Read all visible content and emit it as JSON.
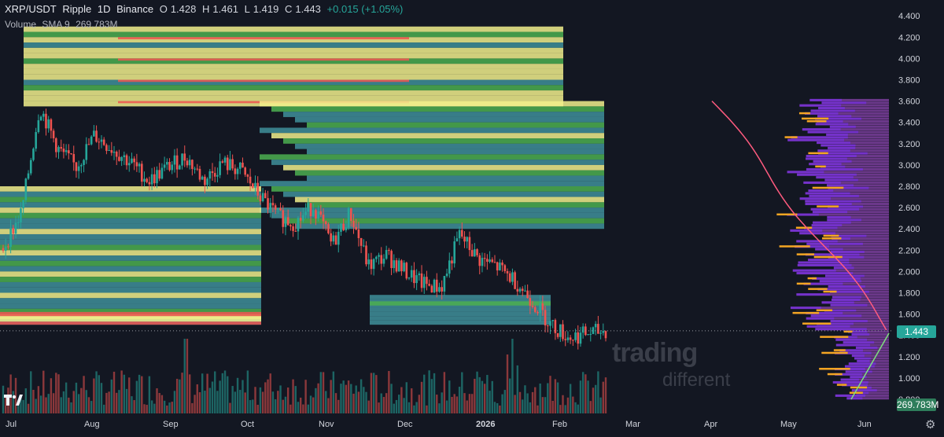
{
  "header": {
    "symbol": "XRP/USDT",
    "name": "Ripple",
    "interval": "1D",
    "exchange": "Binance",
    "open_label": "O",
    "open_value": "1.428",
    "high_label": "H",
    "high_value": "1.461",
    "low_label": "L",
    "low_value": "1.419",
    "close_label": "C",
    "close_value": "1.443",
    "change": "+0.015 (+1.05%)"
  },
  "volume_legend": {
    "label": "Volume",
    "indicator": "SMA 9",
    "value": "269.783M"
  },
  "price_tags": {
    "last_price": "1.443",
    "volume_value": "269.783M"
  },
  "watermark": {
    "line1": "trading",
    "line2": "different"
  },
  "colors": {
    "background": "#131722",
    "up": "#26a69a",
    "down": "#ef5350",
    "heat_yellow": "#f2f08c",
    "heat_green": "#4caf50",
    "heat_teal": "#3f8f9a",
    "profile_purple": "#b553e0",
    "profile_orange": "#f5a623",
    "last_price_tag": "#26a69a",
    "volume_tag": "#2e7d5b"
  },
  "icons": {
    "logo": "tradingview-logo-icon",
    "settings": "gear-icon"
  },
  "chart_data": {
    "type": "candlestick",
    "title": "XRP/USDT · Ripple · 1D · Binance",
    "x_ticks": [
      "Jul",
      "Aug",
      "Sep",
      "Oct",
      "Nov",
      "Dec",
      "2026",
      "Feb",
      "Mar",
      "Apr",
      "May",
      "Jun"
    ],
    "y_ticks": [
      "0.800",
      "1.000",
      "1.200",
      "1.400",
      "1.600",
      "1.800",
      "2.000",
      "2.200",
      "2.400",
      "2.600",
      "2.800",
      "3.000",
      "3.200",
      "3.400",
      "3.600",
      "3.800",
      "4.000",
      "4.200",
      "4.400"
    ],
    "ylim": [
      0.8,
      4.5
    ],
    "price_path": [
      {
        "date": "Jul 1",
        "close": 2.22
      },
      {
        "date": "Jul 10",
        "close": 2.55
      },
      {
        "date": "Jul 18",
        "close": 3.55
      },
      {
        "date": "Jul 25",
        "close": 3.15
      },
      {
        "date": "Aug 1",
        "close": 2.98
      },
      {
        "date": "Aug 8",
        "close": 3.28
      },
      {
        "date": "Aug 15",
        "close": 3.15
      },
      {
        "date": "Aug 22",
        "close": 3.02
      },
      {
        "date": "Sep 1",
        "close": 2.85
      },
      {
        "date": "Sep 10",
        "close": 2.98
      },
      {
        "date": "Sep 18",
        "close": 3.08
      },
      {
        "date": "Sep 25",
        "close": 2.85
      },
      {
        "date": "Oct 1",
        "close": 3.02
      },
      {
        "date": "Oct 5",
        "close": 2.95
      },
      {
        "date": "Oct 10",
        "close": 2.72
      },
      {
        "date": "Oct 11",
        "close": 2.52
      },
      {
        "date": "Oct 20",
        "close": 2.45
      },
      {
        "date": "Oct 28",
        "close": 2.62
      },
      {
        "date": "Nov 4",
        "close": 2.25
      },
      {
        "date": "Nov 10",
        "close": 2.55
      },
      {
        "date": "Nov 20",
        "close": 2.05
      },
      {
        "date": "Dec 1",
        "close": 2.15
      },
      {
        "date": "Dec 10",
        "close": 2.0
      },
      {
        "date": "Dec 20",
        "close": 1.88
      },
      {
        "date": "Dec 31",
        "close": 1.85
      },
      {
        "date": "Jan 5",
        "close": 2.35
      },
      {
        "date": "Jan 10",
        "close": 2.12
      },
      {
        "date": "Jan 18",
        "close": 2.05
      },
      {
        "date": "Jan 25",
        "close": 1.92
      },
      {
        "date": "Feb 1",
        "close": 1.72
      },
      {
        "date": "Feb 5",
        "close": 1.5
      },
      {
        "date": "Feb 10",
        "close": 1.38
      },
      {
        "date": "Feb 15",
        "close": 1.42
      },
      {
        "date": "Feb 22",
        "close": 1.443
      }
    ],
    "last_price": 1.443,
    "volume_last": 269783000,
    "volume_sma_period": 9,
    "heatmap_zones": [
      {
        "from": 3.9,
        "to": 4.3,
        "level": "yellow"
      },
      {
        "from": 3.6,
        "to": 3.9,
        "level": "yellow"
      },
      {
        "from": 2.45,
        "to": 3.6,
        "level": "teal"
      },
      {
        "from": 1.55,
        "to": 1.78,
        "level": "mixed"
      }
    ]
  }
}
